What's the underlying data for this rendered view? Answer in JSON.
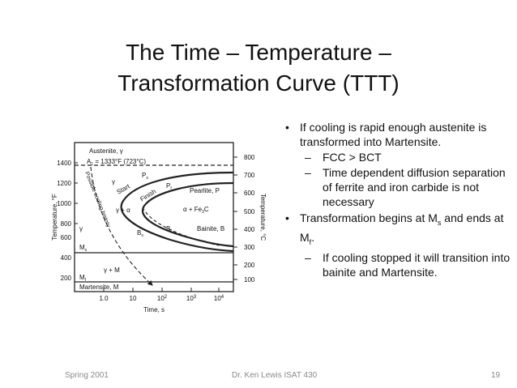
{
  "slide": {
    "title_line1": "The Time – Temperature –",
    "title_line2": "Transformation Curve   (TTT)"
  },
  "bullets": {
    "b1": "If cooling is rapid enough austenite is transformed into Martensite.",
    "b1_sub1": "FCC > BCT",
    "b1_sub2": "Time dependent diffusion separation of ferrite and iron carbide is not necessary",
    "b2_pre": "Transformation begins at M",
    "b2_sub_s": "s",
    "b2_mid": " and ends at M",
    "b2_sub_f": "f",
    "b2_end": ".",
    "b2_sub1": "If cooling stopped it will transition into bainite and Martensite."
  },
  "diagram": {
    "austenite": "Austenite, γ",
    "a1": "A",
    "a1_sub": "1",
    "a1_val": " = 1333°F (723°C)",
    "ps": "P",
    "ps_sub": "s",
    "pf": "P",
    "pf_sub": "f",
    "start": "Start",
    "finish": "Finish",
    "pearlite": "Pearlite, P",
    "gamma": "γ",
    "gamma_alpha": "γ + α",
    "alpha_fe3c": "α + Fe",
    "fe3c_sub": "3",
    "fe3c_end": "C",
    "bs": "B",
    "bs_sub": "s",
    "bf": "B",
    "bf_sub": "f",
    "bainite": "Bainite, B",
    "gamma2": "γ",
    "ms": "M",
    "ms_sub": "s",
    "gamma_m": "γ + M",
    "mf": "M",
    "mf_sub": "f",
    "martensite": "Martensite, M",
    "cooling": "Possible cooling history",
    "ylabel_left": "Temperature, °F",
    "ylabel_right": "Temperature, °C",
    "xlabel": "Time, s",
    "y_ticks_f": [
      "1400",
      "1200",
      "1000",
      "800",
      "600",
      "400",
      "200"
    ],
    "y_ticks_c": [
      "800",
      "700",
      "600",
      "500",
      "400",
      "300",
      "200",
      "100"
    ],
    "x_ticks": [
      "1.0",
      "10",
      "10",
      "10",
      "10"
    ],
    "x_sup": [
      "",
      "",
      "2",
      "3",
      "4"
    ]
  },
  "footer": {
    "left": "Spring 2001",
    "center": "Dr. Ken Lewis    ISAT 430",
    "right": "19"
  }
}
